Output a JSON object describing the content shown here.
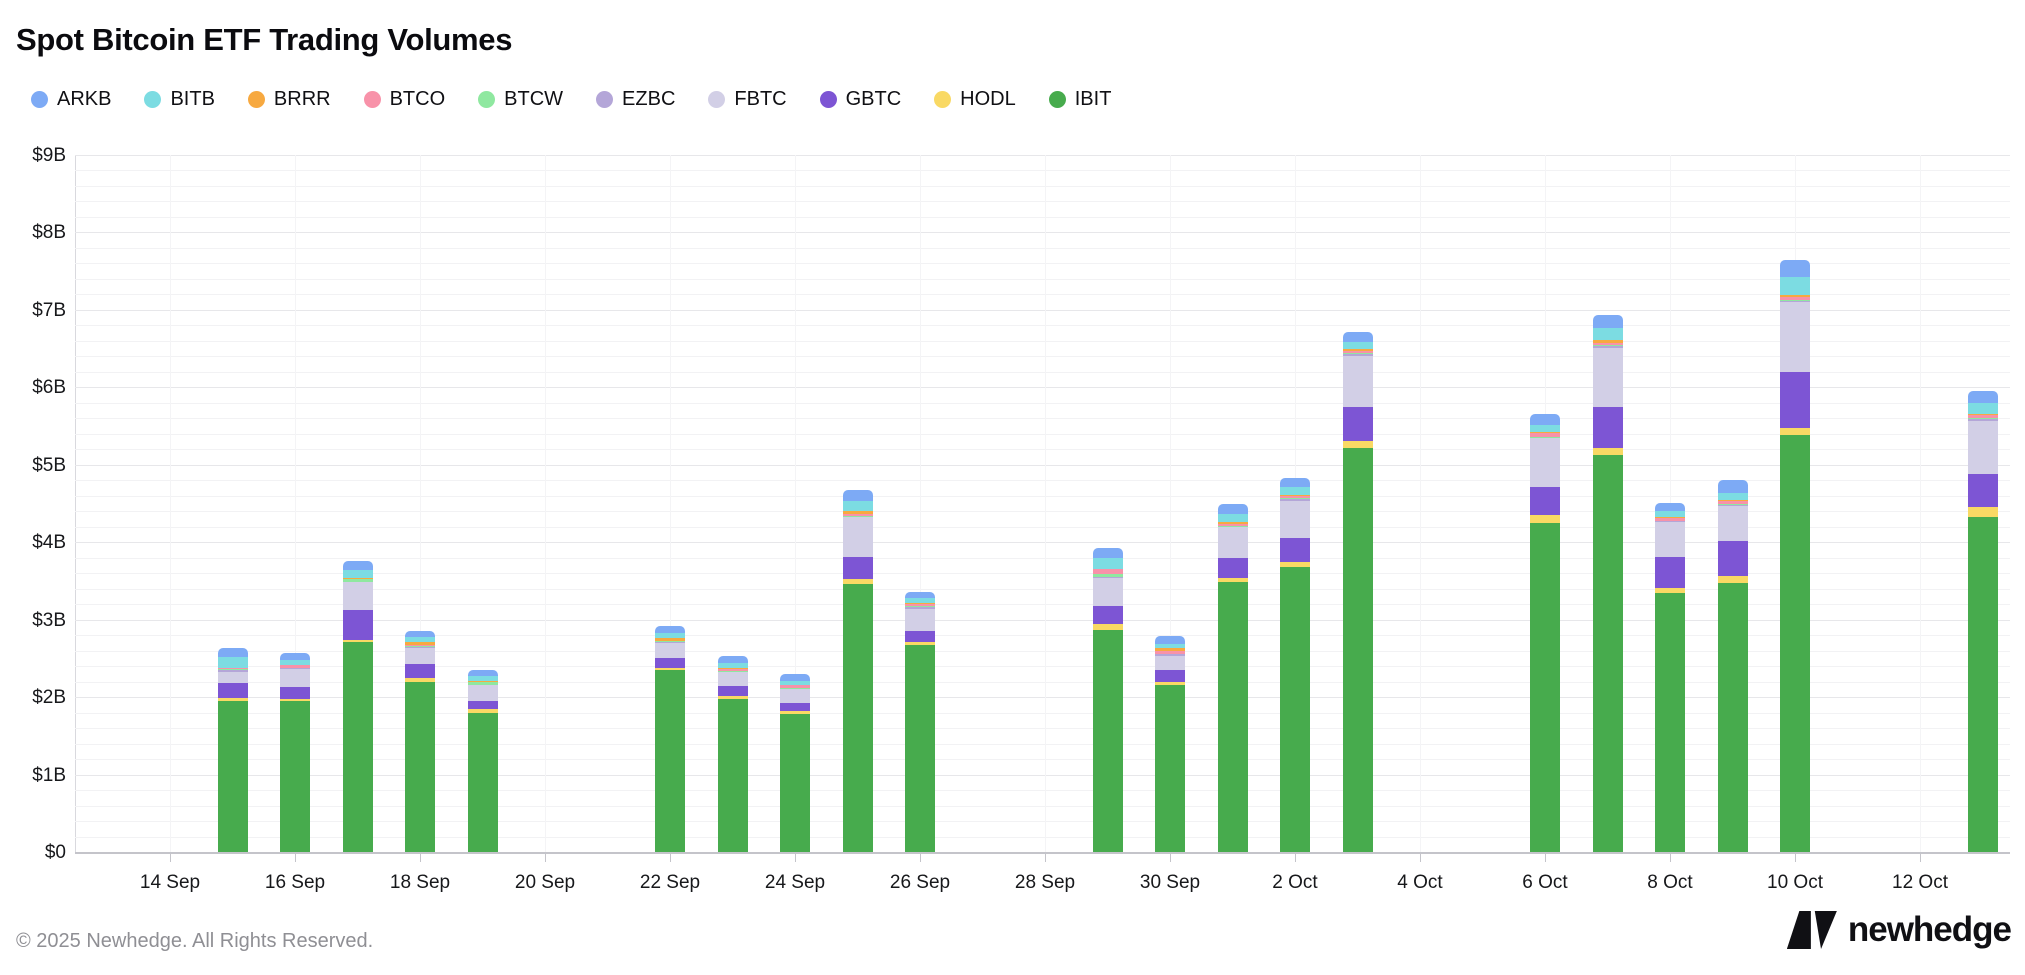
{
  "title": "Spot Bitcoin ETF Trading Volumes",
  "footer": {
    "copyright": "© 2025 Newhedge. All Rights Reserved.",
    "brand": "newhedge"
  },
  "chart_data": {
    "type": "bar",
    "stacked": true,
    "title": "Spot Bitcoin ETF Trading Volumes",
    "unit": "USD billions",
    "ylim": [
      0,
      9
    ],
    "grid": true,
    "legend_position": "top",
    "y_ticks": [
      "$0",
      "$1B",
      "$2B",
      "$3B",
      "$4B",
      "$5B",
      "$6B",
      "$7B",
      "$8B",
      "$9B"
    ],
    "x_ticks": [
      "14 Sep",
      "16 Sep",
      "18 Sep",
      "20 Sep",
      "22 Sep",
      "24 Sep",
      "26 Sep",
      "28 Sep",
      "30 Sep",
      "2 Oct",
      "4 Oct",
      "6 Oct",
      "8 Oct",
      "10 Oct",
      "12 Oct"
    ],
    "x_tick_day_offsets": [
      0,
      2,
      4,
      6,
      8,
      10,
      12,
      14,
      16,
      18,
      20,
      22,
      24,
      26,
      28
    ],
    "categories": [
      "15 Sep",
      "16 Sep",
      "17 Sep",
      "18 Sep",
      "19 Sep",
      "22 Sep",
      "23 Sep",
      "24 Sep",
      "25 Sep",
      "26 Sep",
      "29 Sep",
      "30 Sep",
      "1 Oct",
      "2 Oct",
      "3 Oct",
      "6 Oct",
      "7 Oct",
      "8 Oct",
      "9 Oct",
      "10 Oct",
      "13 Oct"
    ],
    "category_day_offsets": [
      1,
      2,
      3,
      4,
      5,
      8,
      9,
      10,
      11,
      12,
      15,
      16,
      17,
      18,
      19,
      22,
      23,
      24,
      25,
      26,
      29
    ],
    "stack_order_note": "series listed top-of-stack first (alphabetical); rendered bottom-up in reverse",
    "series": [
      {
        "name": "ARKB",
        "color": "#7daaf5",
        "values": [
          0.12,
          0.09,
          0.12,
          0.08,
          0.08,
          0.09,
          0.09,
          0.09,
          0.15,
          0.08,
          0.13,
          0.1,
          0.14,
          0.12,
          0.14,
          0.14,
          0.17,
          0.11,
          0.16,
          0.22,
          0.15
        ]
      },
      {
        "name": "BITB",
        "color": "#7cdce2",
        "values": [
          0.14,
          0.06,
          0.1,
          0.07,
          0.06,
          0.07,
          0.07,
          0.05,
          0.13,
          0.07,
          0.14,
          0.06,
          0.1,
          0.1,
          0.09,
          0.1,
          0.15,
          0.08,
          0.1,
          0.23,
          0.15
        ]
      },
      {
        "name": "BRRR",
        "color": "#f7a940",
        "values": [
          0.01,
          0.01,
          0.01,
          0.04,
          0.01,
          0.03,
          0.01,
          0.01,
          0.04,
          0.01,
          0.01,
          0.03,
          0.02,
          0.01,
          0.02,
          0.01,
          0.04,
          0.01,
          0.01,
          0.03,
          0.01
        ]
      },
      {
        "name": "BTCO",
        "color": "#f892a9",
        "values": [
          0.01,
          0.03,
          0.01,
          0.01,
          0.01,
          0.01,
          0.02,
          0.03,
          0.02,
          0.03,
          0.06,
          0.04,
          0.03,
          0.03,
          0.03,
          0.05,
          0.02,
          0.03,
          0.04,
          0.03,
          0.04
        ]
      },
      {
        "name": "BTCW",
        "color": "#8fe8a0",
        "values": [
          0.01,
          0.01,
          0.03,
          0.01,
          0.03,
          0.01,
          0.01,
          0.01,
          0.01,
          0.01,
          0.04,
          0.01,
          0.01,
          0.01,
          0.01,
          0.01,
          0.02,
          0.01,
          0.01,
          0.01,
          0.01
        ]
      },
      {
        "name": "EZBC",
        "color": "#b4a6d8",
        "values": [
          0.02,
          0.01,
          0.01,
          0.01,
          0.01,
          0.01,
          0.01,
          0.01,
          0.01,
          0.02,
          0.01,
          0.02,
          0.01,
          0.03,
          0.02,
          0.01,
          0.02,
          0.01,
          0.01,
          0.02,
          0.02
        ]
      },
      {
        "name": "FBTC",
        "color": "#d2cfe6",
        "values": [
          0.15,
          0.23,
          0.36,
          0.21,
          0.2,
          0.2,
          0.18,
          0.18,
          0.51,
          0.29,
          0.36,
          0.18,
          0.4,
          0.47,
          0.67,
          0.63,
          0.77,
          0.45,
          0.45,
          0.9,
          0.69
        ]
      },
      {
        "name": "GBTC",
        "color": "#7d55d4",
        "values": [
          0.19,
          0.15,
          0.38,
          0.19,
          0.11,
          0.12,
          0.12,
          0.1,
          0.28,
          0.14,
          0.24,
          0.15,
          0.25,
          0.32,
          0.44,
          0.36,
          0.52,
          0.4,
          0.46,
          0.72,
          0.43
        ]
      },
      {
        "name": "HODL",
        "color": "#f9d964",
        "values": [
          0.04,
          0.03,
          0.03,
          0.04,
          0.04,
          0.03,
          0.04,
          0.04,
          0.07,
          0.04,
          0.08,
          0.04,
          0.06,
          0.06,
          0.08,
          0.1,
          0.1,
          0.06,
          0.09,
          0.1,
          0.13
        ]
      },
      {
        "name": "IBIT",
        "color": "#47ab4d",
        "values": [
          1.95,
          1.95,
          2.71,
          2.2,
          1.8,
          2.35,
          1.98,
          1.78,
          3.46,
          2.67,
          2.86,
          2.16,
          3.48,
          3.68,
          5.22,
          4.25,
          5.12,
          3.35,
          3.47,
          5.38,
          4.32
        ]
      }
    ]
  }
}
